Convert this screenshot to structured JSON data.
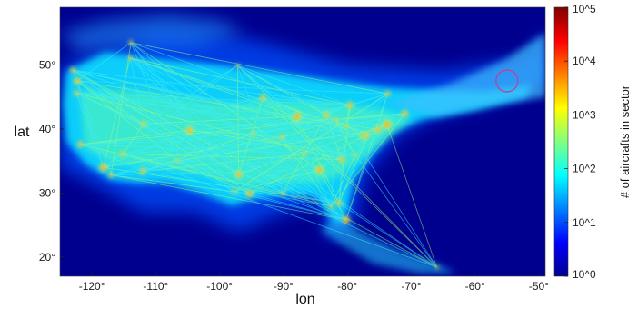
{
  "chart_data": {
    "type": "heatmap",
    "title": "",
    "xlabel": "lon",
    "ylabel": "lat",
    "xlim": [
      -125,
      -49
    ],
    "ylim": [
      17,
      59
    ],
    "x_ticks": [
      -120,
      -110,
      -100,
      -90,
      -80,
      -70,
      -60,
      -50
    ],
    "x_tick_labels": [
      "-120°",
      "-110°",
      "-100°",
      "-90°",
      "-80°",
      "-70°",
      "-60°",
      "-50°"
    ],
    "y_ticks": [
      20,
      30,
      40,
      50
    ],
    "y_tick_labels": [
      "20°",
      "30°",
      "40°",
      "50°"
    ],
    "colorbar": {
      "label": "# of aircrafts in sector",
      "scale": "log",
      "range": [
        1,
        100000
      ],
      "ticks": [
        1,
        10,
        100,
        1000,
        10000,
        100000
      ],
      "tick_labels": [
        "10^0",
        "10^1",
        "10^2",
        "10^3",
        "10^4",
        "10^5"
      ],
      "colormap": [
        "#00008f",
        "#0000ff",
        "#0080ff",
        "#00ffff",
        "#80ff80",
        "#ffff00",
        "#ff8000",
        "#ff0000",
        "#800000"
      ]
    },
    "background_color": "#00008f",
    "hubs": [
      {
        "lon": -122.3,
        "lat": 47.5,
        "level": 3.3
      },
      {
        "lon": -123.0,
        "lat": 49.2,
        "level": 3.0
      },
      {
        "lon": -121.8,
        "lat": 37.6,
        "level": 3.2
      },
      {
        "lon": -118.2,
        "lat": 34.0,
        "level": 3.6
      },
      {
        "lon": -117.0,
        "lat": 32.8,
        "level": 3.0
      },
      {
        "lon": -115.2,
        "lat": 36.1,
        "level": 3.0
      },
      {
        "lon": -112.0,
        "lat": 33.4,
        "level": 3.2
      },
      {
        "lon": -111.9,
        "lat": 40.8,
        "level": 3.0
      },
      {
        "lon": -113.9,
        "lat": 53.5,
        "level": 2.8
      },
      {
        "lon": -114.0,
        "lat": 51.1,
        "level": 2.8
      },
      {
        "lon": -104.7,
        "lat": 39.8,
        "level": 3.5
      },
      {
        "lon": -97.0,
        "lat": 32.9,
        "level": 3.4
      },
      {
        "lon": -95.3,
        "lat": 29.9,
        "level": 3.4
      },
      {
        "lon": -93.2,
        "lat": 44.9,
        "level": 3.2
      },
      {
        "lon": -90.3,
        "lat": 38.7,
        "level": 2.9
      },
      {
        "lon": -87.9,
        "lat": 41.9,
        "level": 3.7
      },
      {
        "lon": -84.4,
        "lat": 33.6,
        "level": 3.6
      },
      {
        "lon": -83.3,
        "lat": 42.2,
        "level": 3.2
      },
      {
        "lon": -86.7,
        "lat": 36.1,
        "level": 2.8
      },
      {
        "lon": -80.9,
        "lat": 35.2,
        "level": 3.2
      },
      {
        "lon": -80.2,
        "lat": 25.8,
        "level": 3.4
      },
      {
        "lon": -81.3,
        "lat": 28.4,
        "level": 3.1
      },
      {
        "lon": -82.5,
        "lat": 27.9,
        "level": 2.8
      },
      {
        "lon": -77.4,
        "lat": 38.9,
        "level": 3.4
      },
      {
        "lon": -75.2,
        "lat": 39.9,
        "level": 3.3
      },
      {
        "lon": -73.8,
        "lat": 40.7,
        "level": 3.8
      },
      {
        "lon": -71.0,
        "lat": 42.4,
        "level": 3.3
      },
      {
        "lon": -79.6,
        "lat": 43.7,
        "level": 3.3
      },
      {
        "lon": -73.7,
        "lat": 45.5,
        "level": 3.0
      },
      {
        "lon": -122.4,
        "lat": 45.6,
        "level": 3.0
      },
      {
        "lon": -94.7,
        "lat": 39.3,
        "level": 2.8
      },
      {
        "lon": -90.1,
        "lat": 30.0,
        "level": 2.8
      },
      {
        "lon": -97.7,
        "lat": 30.2,
        "level": 2.8
      },
      {
        "lon": -80.2,
        "lat": 40.5,
        "level": 2.8
      },
      {
        "lon": -81.8,
        "lat": 41.4,
        "level": 2.8
      },
      {
        "lon": -66.0,
        "lat": 18.4,
        "level": 2.6
      },
      {
        "lon": -106.6,
        "lat": 35.0,
        "level": 2.7
      },
      {
        "lon": -97.2,
        "lat": 49.9,
        "level": 2.6
      },
      {
        "lon": -78.8,
        "lat": 35.9,
        "level": 2.7
      },
      {
        "lon": -76.7,
        "lat": 39.2,
        "level": 2.8
      }
    ],
    "annotations": [
      {
        "type": "circle",
        "lon": -55,
        "lat": 47.5,
        "color": "#b04aa0"
      }
    ]
  }
}
